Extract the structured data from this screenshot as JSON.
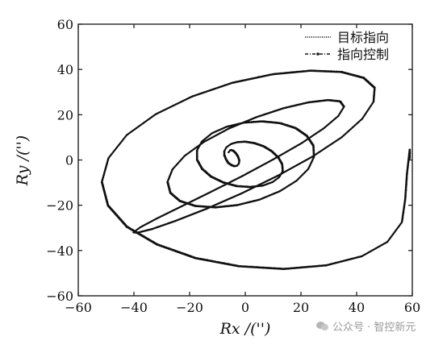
{
  "chart_data": {
    "type": "scatter",
    "title": "",
    "xlabel": "Rx /('')",
    "ylabel": "Ry /('')",
    "xlim": [
      -60,
      60
    ],
    "ylim": [
      -60,
      60
    ],
    "xticks": [
      -60,
      -40,
      -20,
      0,
      20,
      40,
      60
    ],
    "yticks": [
      -60,
      -40,
      -20,
      0,
      20,
      40,
      60
    ],
    "grid": false,
    "legend_position": "top-right",
    "series": [
      {
        "name": "目标指向",
        "style": "dotted",
        "color": "#111111",
        "x": [
          -6,
          -5.4,
          -4.4,
          -3.4,
          -2.6,
          -2.2,
          -2.4,
          -3,
          -4,
          -5,
          -6.2,
          -7,
          -7.6,
          -7.6,
          -6.8,
          -5.2,
          -3,
          -0.2,
          3,
          6.4,
          9.4,
          11.8,
          13.2,
          13.4,
          12.2,
          9.8,
          6.2,
          1.6,
          -3.2,
          -8,
          -12.4,
          -15.6,
          -17.4,
          -17.4,
          -15.6,
          -12,
          -6.8,
          -0.6,
          6,
          12.4,
          18,
          22,
          24.4,
          24.6,
          22.6,
          18.4,
          12.4,
          5,
          -3,
          -10.8,
          -18,
          -23.6,
          -27,
          -28,
          -26.2,
          -21.8,
          -14.8,
          -6,
          3.8,
          13.6,
          22.6,
          29.6,
          34,
          35.4,
          33.4,
          28.2,
          20.2,
          10,
          -1.2,
          -12.8,
          -23.4,
          -32,
          -37.8,
          -40.2,
          -38.8,
          -33.6,
          -25.2,
          -14,
          -1.4,
          11.6,
          24,
          34.6,
          42,
          46,
          46.4,
          42.4,
          34.4,
          23.4,
          9.8,
          -4.8,
          -19.2,
          -32.2,
          -42.6,
          -49.2,
          -51.6,
          -49.4,
          -42.6,
          -31.8,
          -18,
          -2.4,
          13.8,
          29,
          41.8,
          51,
          56.2,
          57.4,
          58,
          59,
          59
        ],
        "y": [
          3.4,
          4.4,
          4,
          2.8,
          1.2,
          -0.4,
          -1.8,
          -2.6,
          -2.8,
          -2.4,
          -1.4,
          0.2,
          2,
          3.8,
          5.6,
          7,
          7.8,
          8,
          7.4,
          6,
          3.8,
          1,
          -2,
          -5,
          -7.6,
          -9.8,
          -11.4,
          -12,
          -11.6,
          -10,
          -7.4,
          -4,
          0,
          4.2,
          8.2,
          11.8,
          14.6,
          16.4,
          17,
          16.2,
          14,
          10.6,
          6.2,
          1.2,
          -4,
          -9.2,
          -13.8,
          -17.6,
          -20,
          -21,
          -20.4,
          -18.2,
          -14.6,
          -9.8,
          -4.2,
          1.8,
          8,
          13.8,
          18.8,
          22.8,
          25.4,
          26.4,
          25.8,
          23.4,
          19.4,
          14,
          7.4,
          0.2,
          -7.2,
          -14.4,
          -20.8,
          -26,
          -29.8,
          -32,
          -32.2,
          -30.6,
          -27,
          -21.6,
          -14.8,
          -7,
          1.4,
          10,
          18.2,
          25.6,
          31.8,
          36.2,
          38.8,
          39.4,
          37.8,
          34,
          28,
          20.2,
          11,
          0.8,
          -9.8,
          -20.2,
          -29.6,
          -37.4,
          -43.4,
          -47,
          -48.2,
          -46.6,
          -42.6,
          -36.2,
          -27.6,
          -17.4,
          -6.4,
          4.6,
          0.6
        ]
      },
      {
        "name": "指向控制",
        "style": "dash-dot",
        "color": "#111111",
        "x": [
          -6,
          -5.4,
          -4.4,
          -3.4,
          -2.6,
          -2.2,
          -2.4,
          -3,
          -4,
          -5,
          -6.2,
          -7,
          -7.6,
          -7.6,
          -6.8,
          -5.2,
          -3,
          -0.2,
          3,
          6.4,
          9.4,
          11.8,
          13.2,
          13.4,
          12.2,
          9.8,
          6.2,
          1.6,
          -3.2,
          -8,
          -12.4,
          -15.6,
          -17.4,
          -17.4,
          -15.6,
          -12,
          -6.8,
          -0.6,
          6,
          12.4,
          18,
          22,
          24.4,
          24.6,
          22.6,
          18.4,
          12.4,
          5,
          -3,
          -10.8,
          -18,
          -23.6,
          -27,
          -28,
          -26.2,
          -21.8,
          -14.8,
          -6,
          3.8,
          13.6,
          22.6,
          29.6,
          34,
          35.4,
          33.4,
          28.2,
          20.2,
          10,
          -1.2,
          -12.8,
          -23.4,
          -32,
          -37.8,
          -40.2,
          -38.8,
          -33.6,
          -25.2,
          -14,
          -1.4,
          11.6,
          24,
          34.6,
          42,
          46,
          46.4,
          42.4,
          34.4,
          23.4,
          9.8,
          -4.8,
          -19.2,
          -32.2,
          -42.6,
          -49.2,
          -51.6,
          -49.4,
          -42.6,
          -31.8,
          -18,
          -2.4,
          13.8,
          29,
          41.8,
          51,
          56.2,
          57.4,
          58,
          59,
          59
        ],
        "y": [
          3.4,
          4.4,
          4,
          2.8,
          1.2,
          -0.4,
          -1.8,
          -2.6,
          -2.8,
          -2.4,
          -1.4,
          0.2,
          2,
          3.8,
          5.6,
          7,
          7.8,
          8,
          7.4,
          6,
          3.8,
          1,
          -2,
          -5,
          -7.6,
          -9.8,
          -11.4,
          -12,
          -11.6,
          -10,
          -7.4,
          -4,
          0,
          4.2,
          8.2,
          11.8,
          14.6,
          16.4,
          17,
          16.2,
          14,
          10.6,
          6.2,
          1.2,
          -4,
          -9.2,
          -13.8,
          -17.6,
          -20,
          -21,
          -20.4,
          -18.2,
          -14.6,
          -9.8,
          -4.2,
          1.8,
          8,
          13.8,
          18.8,
          22.8,
          25.4,
          26.4,
          25.8,
          23.4,
          19.4,
          14,
          7.4,
          0.2,
          -7.2,
          -14.4,
          -20.8,
          -26,
          -29.8,
          -32,
          -32.2,
          -30.6,
          -27,
          -21.6,
          -14.8,
          -7,
          1.4,
          10,
          18.2,
          25.6,
          31.8,
          36.2,
          38.8,
          39.4,
          37.8,
          34,
          28,
          20.2,
          11,
          0.8,
          -9.8,
          -20.2,
          -29.6,
          -37.4,
          -43.4,
          -47,
          -48.2,
          -46.6,
          -42.6,
          -36.2,
          -27.6,
          -17.4,
          -6.4,
          4.6,
          0.6
        ]
      }
    ]
  },
  "watermark": {
    "icon": "wechat-icon",
    "text": "公众号 · 智控新元"
  }
}
